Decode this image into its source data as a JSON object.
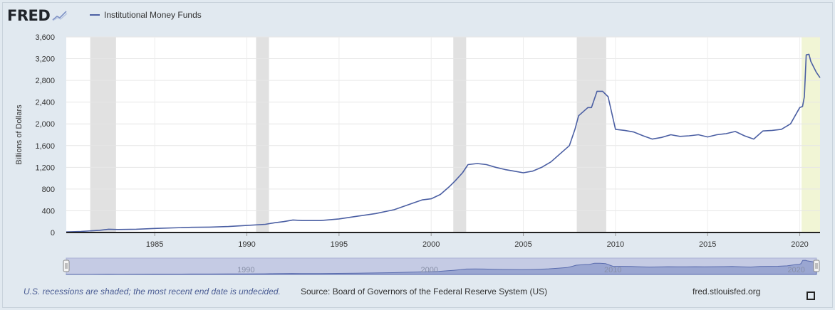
{
  "brand": {
    "logo_text": "FRED"
  },
  "legend": {
    "label": "Institutional Money Funds",
    "color": "#4b5fa3"
  },
  "footer": {
    "note": "U.S. recessions are shaded; the most recent end date is undecided.",
    "source": "Source: Board of Governors of the Federal Reserve System (US)",
    "site": "fred.stlouisfed.org"
  },
  "icons": {
    "fullscreen": "fullscreen-icon",
    "logo_mark": "chart-logo-icon"
  },
  "colors": {
    "line": "#4b5fa3",
    "recession": "#e1e1e1",
    "recession_current": "#f1f5d5",
    "navigator_fill": "#9aa6d1",
    "navigator_bg": "#c5cbe4"
  },
  "chart_data": {
    "type": "line",
    "title": "",
    "xlabel": "",
    "ylabel": "Billions of Dollars",
    "xlim": [
      1980.2,
      2021.1
    ],
    "ylim": [
      0,
      3600
    ],
    "yticks": [
      0,
      400,
      800,
      1200,
      1600,
      2000,
      2400,
      2800,
      3200,
      3600
    ],
    "ytick_labels": [
      "0",
      "400",
      "800",
      "1,200",
      "1,600",
      "2,000",
      "2,400",
      "2,800",
      "3,200",
      "3,600"
    ],
    "xticks": [
      1985,
      1990,
      1995,
      2000,
      2005,
      2010,
      2015,
      2020
    ],
    "xtick_labels": [
      "1985",
      "1990",
      "1995",
      "2000",
      "2005",
      "2010",
      "2015",
      "2020"
    ],
    "navigator_labels": [
      {
        "year": 1990,
        "label": "1990"
      },
      {
        "year": 2000,
        "label": "2000"
      },
      {
        "year": 2010,
        "label": "2010"
      },
      {
        "year": 2020,
        "label": "2020"
      }
    ],
    "grid": true,
    "legend_position": "top-left",
    "recessions": [
      {
        "start": 1981.5,
        "end": 1982.9,
        "current": false
      },
      {
        "start": 1990.5,
        "end": 1991.2,
        "current": false
      },
      {
        "start": 2001.2,
        "end": 2001.9,
        "current": false
      },
      {
        "start": 2007.9,
        "end": 2009.5,
        "current": false
      },
      {
        "start": 2020.1,
        "end": 2021.1,
        "current": true
      }
    ],
    "series": [
      {
        "name": "Institutional Money Funds",
        "x": [
          1980.2,
          1981,
          1982,
          1982.5,
          1983,
          1984,
          1985,
          1986,
          1987,
          1988,
          1989,
          1990,
          1991,
          1991.5,
          1992,
          1992.5,
          1993,
          1994,
          1995,
          1996,
          1997,
          1998,
          1999,
          1999.5,
          2000,
          2000.5,
          2001,
          2001.3,
          2001.7,
          2002,
          2002.5,
          2003,
          2003.5,
          2004,
          2004.5,
          2005,
          2005.5,
          2006,
          2006.5,
          2007,
          2007.5,
          2007.8,
          2008,
          2008.5,
          2008.7,
          2009,
          2009.3,
          2009.6,
          2010,
          2010.5,
          2011,
          2011.5,
          2012,
          2012.5,
          2013,
          2013.5,
          2014,
          2014.5,
          2015,
          2015.5,
          2016,
          2016.5,
          2017,
          2017.5,
          2018,
          2018.5,
          2019,
          2019.5,
          2020,
          2020.15,
          2020.25,
          2020.35,
          2020.5,
          2020.6,
          2020.75,
          2020.9,
          2021.1
        ],
        "values": [
          10,
          20,
          40,
          60,
          55,
          60,
          75,
          85,
          95,
          100,
          110,
          130,
          150,
          180,
          200,
          230,
          220,
          220,
          250,
          300,
          350,
          420,
          540,
          600,
          620,
          700,
          850,
          950,
          1100,
          1250,
          1270,
          1250,
          1200,
          1160,
          1130,
          1100,
          1130,
          1200,
          1300,
          1450,
          1600,
          1900,
          2150,
          2300,
          2300,
          2600,
          2600,
          2500,
          1900,
          1880,
          1850,
          1780,
          1720,
          1750,
          1800,
          1770,
          1780,
          1800,
          1760,
          1800,
          1820,
          1860,
          1780,
          1720,
          1870,
          1880,
          1900,
          2000,
          2300,
          2320,
          2500,
          3270,
          3280,
          3150,
          3050,
          2950,
          2850
        ]
      }
    ]
  }
}
